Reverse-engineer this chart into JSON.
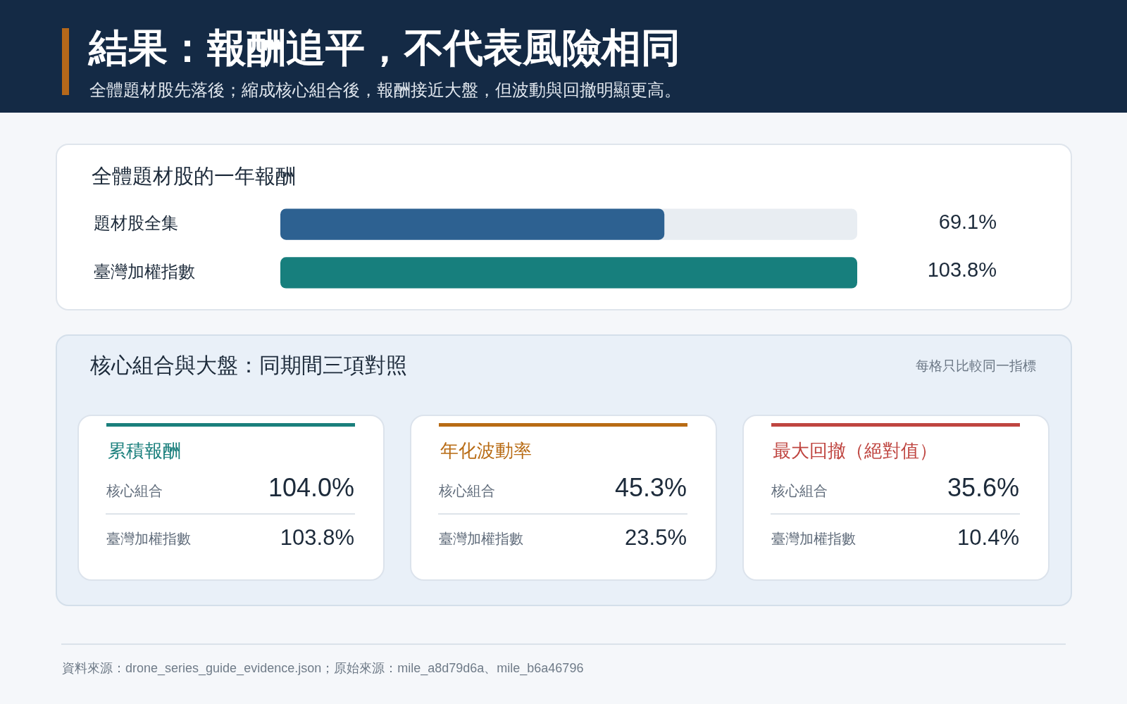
{
  "chart_data": [
    {
      "type": "other",
      "title": "結果：報酬追平，不代表風險相同",
      "subtitle": "全體題材股先落後；縮成核心組合後，報酬接近大盤，但波動與回撤明顯更高。"
    },
    {
      "type": "bar",
      "orientation": "horizontal",
      "title": "全體題材股的一年報酬",
      "categories": [
        "題材股全集",
        "臺灣加權指數"
      ],
      "values": [
        69.1,
        103.8
      ],
      "colors": [
        "#2d6191",
        "#177f7d"
      ],
      "value_labels": [
        "69.1%",
        "103.8%"
      ],
      "tick_labels": "y"
    },
    {
      "type": "other",
      "title": "核心組合與大盤：同期間三項對照",
      "annotations": [
        "每格只比較同一指標"
      ],
      "categories": [
        "累積報酬",
        "年化波動率",
        "最大回撤（絕對值）"
      ],
      "colors": [
        "#1a7f7c",
        "#b86b14",
        "#bf4540"
      ],
      "series": [
        {
          "name": "核心組合",
          "values": [
            104.0,
            45.3,
            35.6
          ],
          "value_labels": [
            "104.0%",
            "45.3%",
            "35.6%"
          ]
        },
        {
          "name": "臺灣加權指數",
          "values": [
            103.8,
            23.5,
            10.4
          ],
          "value_labels": [
            "103.8%",
            "23.5%",
            "10.4%"
          ]
        }
      ]
    },
    {
      "type": "other",
      "annotations": [
        "資料來源：drone_series_guide_evidence.json；原始來源：mile_a8d79d6a、mile_b6a46796"
      ]
    }
  ]
}
